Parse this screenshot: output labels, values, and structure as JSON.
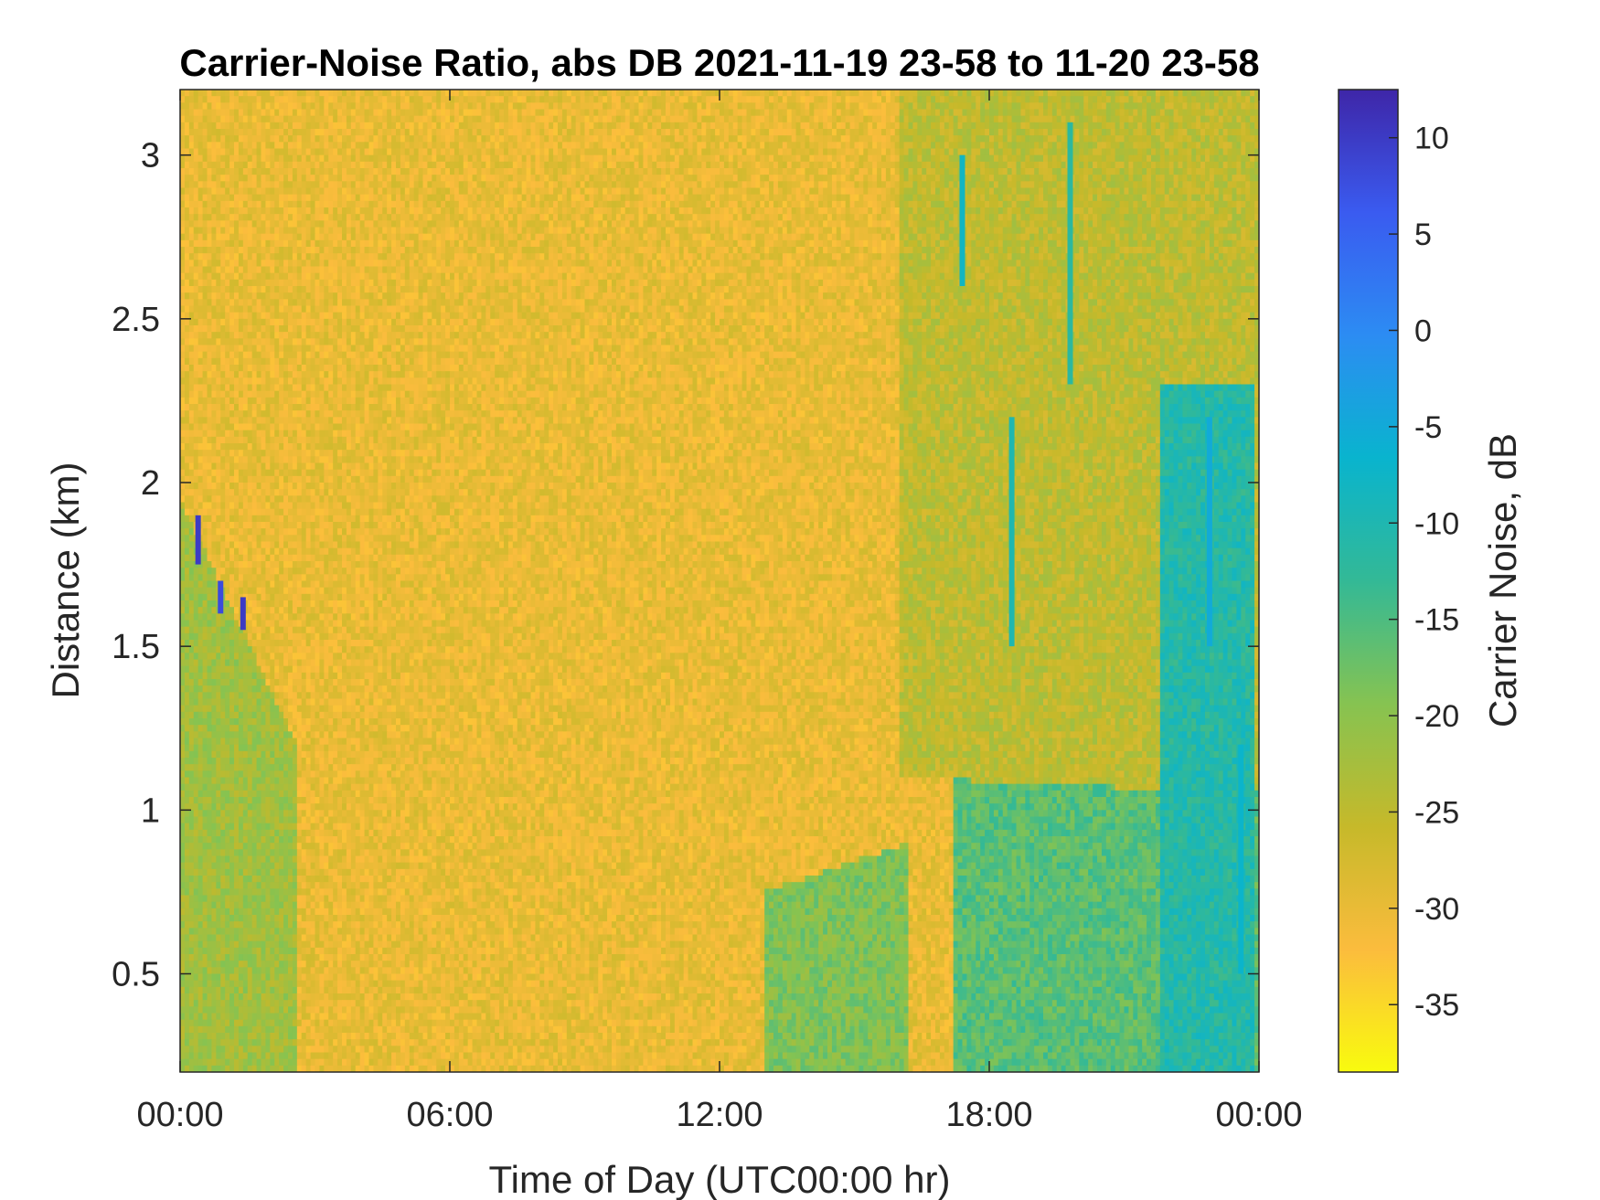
{
  "chart_data": {
    "type": "heatmap",
    "title": "Carrier-Noise Ratio, abs DB 2021-11-19 23-58 to 11-20 23-58",
    "xlabel": "Time of Day (UTC00:00 hr)",
    "ylabel": "Distance (km)",
    "colorbar_label": "Carrier Noise, dB",
    "x_range_hours": [
      0,
      24
    ],
    "y_range_km": [
      0.2,
      3.2
    ],
    "color_range_db": [
      -38.5,
      12.5
    ],
    "x_ticks": [
      {
        "value": 0,
        "label": "00:00"
      },
      {
        "value": 6,
        "label": "06:00"
      },
      {
        "value": 12,
        "label": "12:00"
      },
      {
        "value": 18,
        "label": "18:00"
      },
      {
        "value": 24,
        "label": "00:00"
      }
    ],
    "y_ticks": [
      {
        "value": 0.5,
        "label": "0.5"
      },
      {
        "value": 1.0,
        "label": "1"
      },
      {
        "value": 1.5,
        "label": "1.5"
      },
      {
        "value": 2.0,
        "label": "2"
      },
      {
        "value": 2.5,
        "label": "2.5"
      },
      {
        "value": 3.0,
        "label": "3"
      }
    ],
    "colorbar_ticks": [
      {
        "value": -35,
        "label": "-35"
      },
      {
        "value": -30,
        "label": "-30"
      },
      {
        "value": -25,
        "label": "-25"
      },
      {
        "value": -20,
        "label": "-20"
      },
      {
        "value": -15,
        "label": "-15"
      },
      {
        "value": -10,
        "label": "-10"
      },
      {
        "value": -5,
        "label": "-5"
      },
      {
        "value": 0,
        "label": "0"
      },
      {
        "value": 5,
        "label": "5"
      },
      {
        "value": 10,
        "label": "10"
      }
    ],
    "colormap": [
      "#f9fb0e",
      "#fbbc3d",
      "#c6b92a",
      "#86c351",
      "#33b996",
      "#09b4ce",
      "#2c8cf3",
      "#3a5bf0",
      "#3e26a8"
    ],
    "background_level_db": -30,
    "regions": [
      {
        "x": [
          0.0,
          2.6
        ],
        "y_bottom": [
          0.2,
          0.2
        ],
        "y_top": [
          1.95,
          1.2
        ],
        "level_db": -22
      },
      {
        "x": [
          13.0,
          16.2
        ],
        "y_bottom": [
          0.2,
          0.2
        ],
        "y_top": [
          0.75,
          0.9
        ],
        "level_db": -19
      },
      {
        "x": [
          17.2,
          24.0
        ],
        "y_bottom": [
          0.2,
          0.2
        ],
        "y_top": [
          1.1,
          1.05
        ],
        "level_db": -16
      },
      {
        "x": [
          16.0,
          24.0
        ],
        "y_bottom": [
          1.1,
          1.05
        ],
        "y_top": [
          3.2,
          3.2
        ],
        "level_db": -25
      },
      {
        "x": [
          21.8,
          23.9
        ],
        "y_bottom": [
          0.2,
          0.2
        ],
        "y_top": [
          2.3,
          2.3
        ],
        "level_db": -11
      }
    ],
    "streaks": [
      {
        "x": 0.4,
        "y": [
          1.75,
          1.9
        ],
        "level_db": 10
      },
      {
        "x": 0.9,
        "y": [
          1.6,
          1.7
        ],
        "level_db": 8
      },
      {
        "x": 1.4,
        "y": [
          1.55,
          1.65
        ],
        "level_db": 10
      },
      {
        "x": 17.4,
        "y": [
          2.6,
          3.0
        ],
        "level_db": -8
      },
      {
        "x": 18.5,
        "y": [
          1.5,
          2.2
        ],
        "level_db": -10
      },
      {
        "x": 19.8,
        "y": [
          2.3,
          3.1
        ],
        "level_db": -12
      },
      {
        "x": 22.9,
        "y": [
          1.5,
          2.2
        ],
        "level_db": -5
      },
      {
        "x": 23.6,
        "y": [
          0.5,
          1.2
        ],
        "level_db": -7
      }
    ]
  }
}
